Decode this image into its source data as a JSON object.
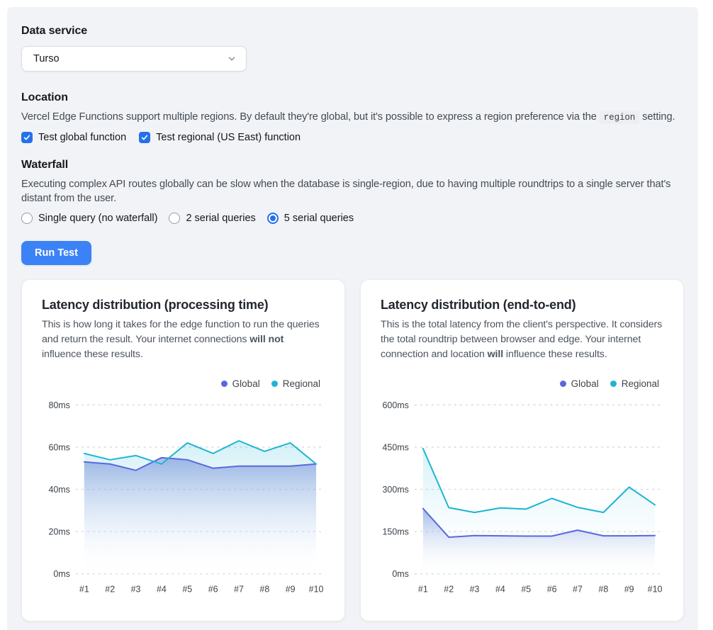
{
  "data_service": {
    "label": "Data service",
    "selected": "Turso"
  },
  "location": {
    "heading": "Location",
    "desc_before": "Vercel Edge Functions support multiple regions. By default they're global, but it's possible to express a region preference via the ",
    "code": "region",
    "desc_after": " setting.",
    "checkboxes": [
      {
        "label": "Test global function",
        "checked": true
      },
      {
        "label": "Test regional (US East) function",
        "checked": true
      }
    ]
  },
  "waterfall": {
    "heading": "Waterfall",
    "desc": "Executing complex API routes globally can be slow when the database is single-region, due to having multiple roundtrips to a single server that's distant from the user.",
    "options": [
      {
        "label": "Single query (no waterfall)",
        "selected": false
      },
      {
        "label": "2 serial queries",
        "selected": false
      },
      {
        "label": "5 serial queries",
        "selected": true
      }
    ]
  },
  "run_button": {
    "label": "Run Test"
  },
  "colors": {
    "accent_blue": "#2570eb",
    "button_blue": "#3b82f6",
    "surface_gray": "#f1f3f6",
    "global_line": "#5a68de",
    "regional_line": "#1db5d3"
  },
  "chart_data": [
    {
      "type": "line",
      "title": "Latency distribution (processing time)",
      "desc_before": "This is how long it takes for the edge function to run the queries and return the result. Your internet connections ",
      "desc_bold": "will not",
      "desc_after": " influence these results.",
      "categories": [
        "#1",
        "#2",
        "#3",
        "#4",
        "#5",
        "#6",
        "#7",
        "#8",
        "#9",
        "#10"
      ],
      "series": [
        {
          "name": "Global",
          "color": "#5a68de",
          "fill_top": "rgba(98,130,212,0.55)",
          "fill_bottom": "rgba(255,255,255,0)",
          "values": [
            53,
            52,
            49,
            55,
            54,
            50,
            51,
            51,
            51,
            52
          ]
        },
        {
          "name": "Regional",
          "color": "#1db5d3",
          "fill_top": "rgba(34,181,210,0.20)",
          "fill_bottom": "rgba(255,255,255,0.02)",
          "values": [
            57,
            54,
            56,
            52,
            62,
            57,
            63,
            58,
            62,
            52
          ]
        }
      ],
      "xlabel": "",
      "ylabel": "",
      "ylim": [
        0,
        80
      ],
      "yticks": [
        0,
        20,
        40,
        60,
        80
      ],
      "ytick_suffix": "ms",
      "grid": "horizontal-dashed",
      "legend_position": "top-right"
    },
    {
      "type": "line",
      "title": "Latency distribution (end-to-end)",
      "desc_before": "This is the total latency from the client's perspective. It considers the total roundtrip between browser and edge. Your internet connection and location ",
      "desc_bold": "will",
      "desc_after": " influence these results.",
      "categories": [
        "#1",
        "#2",
        "#3",
        "#4",
        "#5",
        "#6",
        "#7",
        "#8",
        "#9",
        "#10"
      ],
      "series": [
        {
          "name": "Global",
          "color": "#5a68de",
          "fill_top": "rgba(98,130,212,0.55)",
          "fill_bottom": "rgba(255,255,255,0)",
          "values": [
            232,
            130,
            136,
            135,
            134,
            134,
            155,
            135,
            135,
            136
          ]
        },
        {
          "name": "Regional",
          "color": "#1db5d3",
          "fill_top": "rgba(34,181,210,0.20)",
          "fill_bottom": "rgba(255,255,255,0.02)",
          "values": [
            445,
            235,
            218,
            234,
            230,
            268,
            236,
            218,
            308,
            245
          ]
        }
      ],
      "xlabel": "",
      "ylabel": "",
      "ylim": [
        0,
        600
      ],
      "yticks": [
        0,
        150,
        300,
        450,
        600
      ],
      "ytick_suffix": "ms",
      "grid": "horizontal-dashed",
      "legend_position": "top-right"
    }
  ]
}
